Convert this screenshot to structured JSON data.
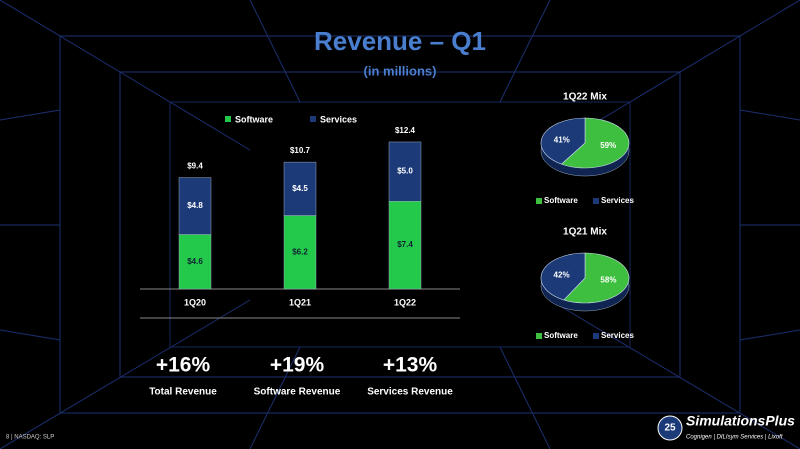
{
  "title": "Revenue – Q1",
  "subtitle": "(in millions)",
  "chart_data": [
    {
      "type": "bar",
      "stacked": true,
      "categories": [
        "1Q20",
        "1Q21",
        "1Q22"
      ],
      "series": [
        {
          "name": "Software",
          "color": "#22c94a",
          "values": [
            4.6,
            6.2,
            7.4
          ],
          "value_labels": [
            "$4.6",
            "$6.2",
            "$7.4"
          ]
        },
        {
          "name": "Services",
          "color": "#1c3a78",
          "values": [
            4.8,
            4.5,
            5.0
          ],
          "value_labels": [
            "$4.8",
            "$4.5",
            "$5.0"
          ]
        }
      ],
      "totals": [
        9.4,
        10.7,
        12.4
      ],
      "total_labels": [
        "$9.4",
        "$10.7",
        "$12.4"
      ],
      "ylim": [
        0,
        14
      ]
    },
    {
      "type": "pie",
      "title": "1Q22 Mix",
      "categories": [
        "Software",
        "Services"
      ],
      "values": [
        59,
        41
      ],
      "value_labels": [
        "59%",
        "41%"
      ],
      "colors": [
        "#3fbf3f",
        "#1c3a78"
      ]
    },
    {
      "type": "pie",
      "title": "1Q21 Mix",
      "categories": [
        "Software",
        "Services"
      ],
      "values": [
        58,
        42
      ],
      "value_labels": [
        "58%",
        "42%"
      ],
      "colors": [
        "#3fbf3f",
        "#1c3a78"
      ]
    }
  ],
  "stats": [
    {
      "value": "+16%",
      "label": "Total Revenue"
    },
    {
      "value": "+19%",
      "label": "Software Revenue"
    },
    {
      "value": "+13%",
      "label": "Services Revenue"
    }
  ],
  "footer": "8 | NASDAQ: SLP",
  "logo": {
    "badge": "25",
    "name": "SimulationsPlus",
    "tagline": "Cognigen | DILIsym Services | Lixoft"
  }
}
